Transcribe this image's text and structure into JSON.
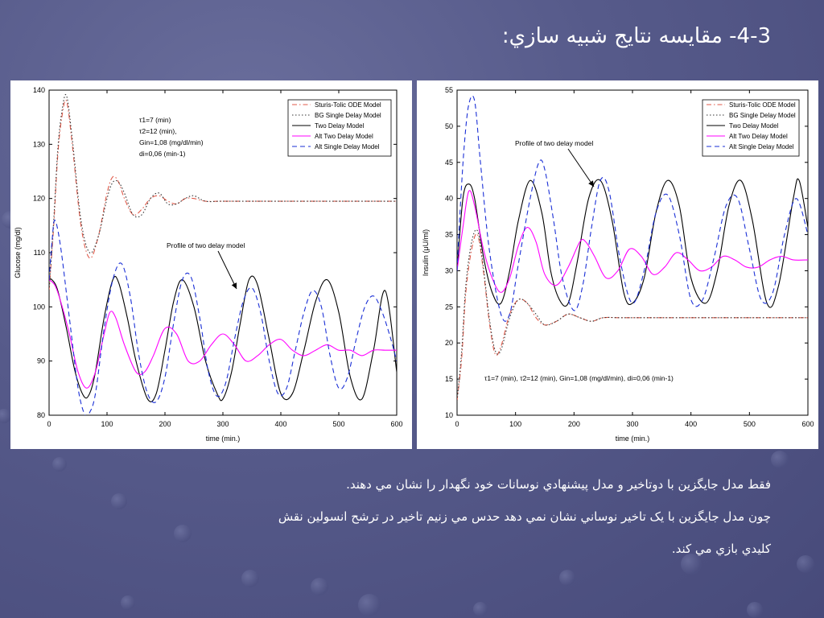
{
  "slide": {
    "title": "4-3- مقايسه نتايج شبيه سازي:",
    "lines": [
      "فقط مدل جايگزين با دوتاخير و مدل پيشنهادي نوسانات خود نگهدار را  نشان مي دهند.",
      "چون مدل جايگزين با يک تاخير نوساني نشان نمي دهد حدس مي زنيم تاخير در ترشح انسولين نقش",
      "كليدي بازي مي كند."
    ],
    "colors": {
      "background": "#565a8a",
      "text": "#ffffff"
    }
  },
  "chart_data": [
    {
      "type": "line",
      "xlabel": "time (min.)",
      "ylabel": "Glucose (mg/dl)",
      "xlim": [
        0,
        600
      ],
      "ylim": [
        80,
        140
      ],
      "xticks": [
        0,
        100,
        200,
        300,
        400,
        500,
        600
      ],
      "yticks": [
        80,
        90,
        100,
        110,
        120,
        130,
        140
      ],
      "legend_position": "top-right",
      "legend": [
        {
          "label": "Sturis-Tolic ODE Model",
          "color": "#e05a4a",
          "dash": "dashdot"
        },
        {
          "label": "BG Single Delay Model",
          "color": "#333333",
          "dash": "dotted"
        },
        {
          "label": "Two Delay Model",
          "color": "#000000",
          "dash": "solid"
        },
        {
          "label": "Alt Two Delay Model",
          "color": "#ff00ff",
          "dash": "solid"
        },
        {
          "label": "Alt Single Delay Model",
          "color": "#1a2fd6",
          "dash": "dashed"
        }
      ],
      "param_lines": [
        "τ1=7 (min)",
        "τ2=12 (min),",
        "Gin=1,08 (mg/dl/min)",
        "di=0,06 (min-1)"
      ],
      "annotation": "Profile of two delay model",
      "series": [
        {
          "name": "Sturis-Tolic ODE Model",
          "x": [
            0,
            8,
            15,
            22,
            30,
            40,
            55,
            70,
            85,
            100,
            110,
            120,
            130,
            145,
            160,
            175,
            190,
            205,
            220,
            235,
            250,
            270,
            300,
            350,
            400,
            450,
            500,
            550,
            600
          ],
          "y": [
            103,
            115,
            128,
            135,
            138,
            130,
            115,
            109,
            113,
            121,
            124,
            123,
            120,
            117,
            118,
            120,
            120.5,
            119.5,
            119,
            120,
            120,
            119.5,
            119.5,
            119.5,
            119.5,
            119.5,
            119.5,
            119.5,
            119.5
          ]
        },
        {
          "name": "BG Single Delay Model",
          "x": [
            0,
            8,
            15,
            22,
            30,
            40,
            55,
            70,
            85,
            100,
            110,
            120,
            130,
            145,
            160,
            175,
            190,
            205,
            220,
            235,
            250,
            270,
            300,
            350,
            400,
            450,
            500,
            550,
            600
          ],
          "y": [
            103,
            116,
            129,
            136,
            139,
            131,
            116,
            110,
            113,
            120,
            123,
            123,
            121,
            117,
            117,
            120,
            121,
            119,
            119,
            120,
            120.5,
            119.5,
            119.5,
            119.5,
            119.5,
            119.5,
            119.5,
            119.5,
            119.5
          ]
        },
        {
          "name": "Two Delay Model",
          "x": [
            0,
            5,
            15,
            30,
            45,
            60,
            70,
            80,
            95,
            110,
            120,
            135,
            150,
            170,
            185,
            200,
            215,
            230,
            250,
            270,
            290,
            300,
            315,
            330,
            345,
            360,
            380,
            400,
            420,
            440,
            460,
            480,
            500,
            520,
            540,
            560,
            580,
            600
          ],
          "y": [
            105,
            105,
            103,
            96,
            88,
            83.5,
            84,
            88,
            98,
            105,
            104.5,
            98,
            90,
            83,
            84,
            92,
            101,
            105,
            100,
            90,
            84,
            83,
            88,
            97,
            105,
            104,
            94,
            84,
            84,
            92,
            101,
            105,
            99,
            87,
            83,
            92,
            103,
            88
          ]
        },
        {
          "name": "Alt Two Delay Model",
          "x": [
            0,
            10,
            20,
            35,
            50,
            65,
            80,
            95,
            105,
            115,
            130,
            150,
            165,
            180,
            200,
            220,
            240,
            260,
            280,
            300,
            320,
            340,
            360,
            380,
            400,
            420,
            440,
            460,
            480,
            500,
            520,
            540,
            560,
            580,
            600
          ],
          "y": [
            105,
            104,
            101,
            95,
            88,
            85,
            88,
            95,
            99,
            98,
            93,
            88,
            88,
            91,
            96,
            95,
            90,
            90,
            93,
            95,
            93,
            90,
            91,
            93,
            94,
            92,
            91,
            92,
            93,
            92,
            92,
            91,
            92,
            92,
            92
          ]
        },
        {
          "name": "Alt Single Delay Model",
          "x": [
            0,
            5,
            10,
            20,
            35,
            50,
            62,
            70,
            80,
            95,
            110,
            125,
            140,
            155,
            170,
            185,
            200,
            215,
            230,
            245,
            260,
            275,
            290,
            305,
            320,
            335,
            350,
            365,
            380,
            395,
            410,
            425,
            440,
            455,
            470,
            485,
            500,
            515,
            530,
            545,
            560,
            575,
            590,
            600
          ],
          "y": [
            105,
            112,
            116,
            111,
            98,
            85,
            80,
            80.5,
            84,
            96,
            105,
            108,
            102,
            91,
            84,
            82.5,
            87,
            97,
            105,
            105.5,
            98,
            88,
            83.5,
            86,
            94,
            101,
            103.5,
            99,
            90,
            84,
            85,
            92,
            99,
            103,
            100,
            91,
            85,
            87,
            94,
            100,
            102,
            99,
            94,
            90
          ]
        }
      ]
    },
    {
      "type": "line",
      "xlabel": "time (min.)",
      "ylabel": "Insulin (μU/ml)",
      "xlim": [
        0,
        600
      ],
      "ylim": [
        10,
        55
      ],
      "xticks": [
        0,
        100,
        200,
        300,
        400,
        500,
        600
      ],
      "yticks": [
        10,
        15,
        20,
        25,
        30,
        35,
        40,
        45,
        50,
        55
      ],
      "legend_position": "top-right",
      "legend": [
        {
          "label": "Sturis-Tolic ODE Model",
          "color": "#e05a4a",
          "dash": "dashdot"
        },
        {
          "label": "BG Single Delay Model",
          "color": "#333333",
          "dash": "dotted"
        },
        {
          "label": "Two Delay Model",
          "color": "#000000",
          "dash": "solid"
        },
        {
          "label": "Alt Two Delay Model",
          "color": "#ff00ff",
          "dash": "solid"
        },
        {
          "label": "Alt Single Delay Model",
          "color": "#1a2fd6",
          "dash": "dashed"
        }
      ],
      "param_line": "τ1=7 (min), τ2=12 (min), Gin=1,08 (mg/dl/min), di=0,06 (min-1)",
      "annotation": "Profile of two delay model",
      "series": [
        {
          "name": "Sturis-Tolic ODE Model",
          "x": [
            0,
            8,
            15,
            25,
            35,
            45,
            55,
            65,
            75,
            90,
            105,
            120,
            135,
            150,
            170,
            190,
            210,
            230,
            250,
            280,
            320,
            400,
            500,
            600
          ],
          "y": [
            12,
            18,
            27,
            33,
            35,
            30,
            23,
            18.5,
            19.5,
            24,
            26,
            25.5,
            23.5,
            22.5,
            23,
            24,
            23.5,
            23,
            23.5,
            23.5,
            23.5,
            23.5,
            23.5,
            23.5
          ]
        },
        {
          "name": "BG Single Delay Model",
          "x": [
            0,
            8,
            15,
            25,
            35,
            45,
            55,
            65,
            75,
            90,
            105,
            120,
            135,
            150,
            170,
            190,
            210,
            230,
            250,
            280,
            320,
            400,
            500,
            600
          ],
          "y": [
            12,
            19,
            28,
            34,
            35.5,
            30.5,
            23.5,
            19,
            19,
            23.5,
            26,
            25.5,
            24,
            22.5,
            23,
            24,
            23.5,
            23,
            23.5,
            23.5,
            23.5,
            23.5,
            23.5,
            23.5
          ]
        },
        {
          "name": "Two Delay Model",
          "x": [
            0,
            10,
            20,
            30,
            45,
            60,
            75,
            90,
            105,
            125,
            145,
            160,
            175,
            190,
            205,
            225,
            245,
            265,
            285,
            300,
            320,
            340,
            360,
            380,
            400,
            425,
            445,
            465,
            485,
            505,
            530,
            550,
            575,
            585,
            600
          ],
          "y": [
            30,
            40,
            42,
            40,
            32,
            27,
            25.5,
            30,
            37,
            42.5,
            38,
            30,
            26,
            25.5,
            31,
            40,
            42.5,
            37,
            27,
            25.5,
            29,
            38,
            42.5,
            39,
            29,
            25.5,
            30,
            39,
            42.5,
            37,
            25.5,
            28,
            40,
            42.5,
            36
          ]
        },
        {
          "name": "Alt Two Delay Model",
          "x": [
            0,
            10,
            20,
            30,
            45,
            60,
            75,
            90,
            105,
            120,
            135,
            150,
            170,
            190,
            210,
            220,
            235,
            255,
            275,
            295,
            315,
            335,
            355,
            375,
            395,
            415,
            435,
            455,
            475,
            495,
            515,
            535,
            555,
            575,
            600
          ],
          "y": [
            30,
            36,
            41,
            39,
            33,
            29,
            27,
            29,
            33.5,
            36,
            34,
            29.5,
            28,
            30.5,
            34,
            34,
            32,
            29,
            30,
            33,
            32,
            29.5,
            30.5,
            32.5,
            31.5,
            30,
            30.5,
            32,
            31.5,
            30.5,
            30.5,
            31.5,
            32,
            31.5,
            31.5
          ]
        },
        {
          "name": "Alt Single Delay Model",
          "x": [
            0,
            5,
            12,
            20,
            30,
            40,
            55,
            75,
            90,
            105,
            125,
            140,
            150,
            165,
            180,
            200,
            215,
            230,
            245,
            260,
            280,
            300,
            320,
            340,
            360,
            380,
            400,
            420,
            440,
            460,
            480,
            500,
            520,
            540,
            560,
            580,
            600
          ],
          "y": [
            30,
            38,
            47,
            53,
            53.5,
            45,
            33,
            24,
            24,
            31,
            40,
            45,
            44,
            37,
            29,
            24.5,
            28,
            36,
            42.5,
            41,
            31,
            25.5,
            30,
            38,
            40.5,
            35,
            26,
            26,
            32,
            39,
            40,
            33,
            26,
            27,
            35,
            40,
            35
          ]
        }
      ]
    }
  ]
}
